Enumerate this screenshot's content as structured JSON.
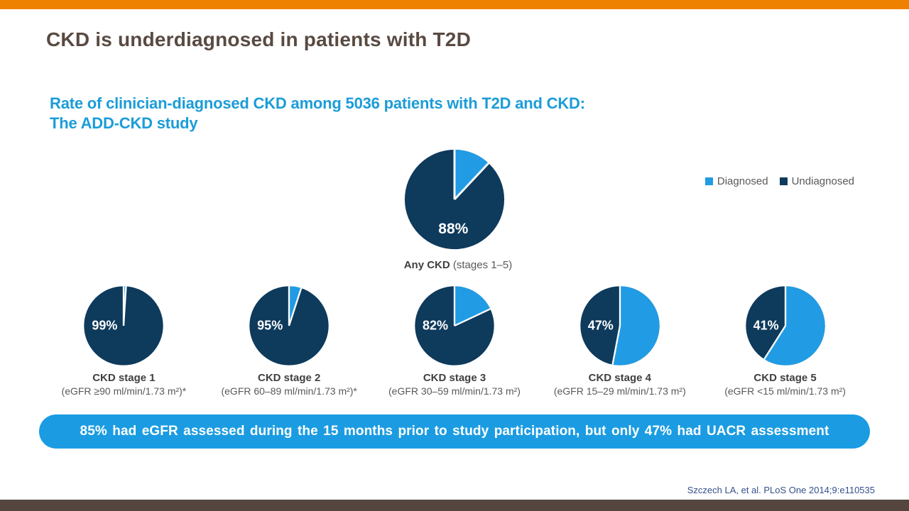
{
  "slide": {
    "title": "CKD is underdiagnosed in patients with T2D",
    "subtitle_line1": "Rate of clinician-diagnosed CKD among 5036 patients with T2D and CKD:",
    "subtitle_line2": "The ADD-CKD study",
    "banner_text": "85% had eGFR assessed during the 15 months prior to study participation, but only 47% had UACR assessment",
    "citation": "Szczech LA, et al. PLoS One 2014;9:e110535"
  },
  "colors": {
    "top_bar": "#ee8100",
    "bottom_bar": "#54463f",
    "title_text": "#594a42",
    "subtitle_text": "#1b9cd8",
    "banner_bg": "#1b9ce2",
    "diagnosed": "#219ce4",
    "undiagnosed": "#0e3a5c",
    "pie_value_text": "#ffffff",
    "citation_text": "#34508c"
  },
  "chart_data": {
    "type": "pie",
    "unit": "%",
    "legend": [
      "Diagnosed",
      "Undiagnosed"
    ],
    "legend_position": "top-right",
    "colors": {
      "diagnosed": "#219ce4",
      "undiagnosed": "#0e3a5c"
    },
    "pies": [
      {
        "title": "Any CKD",
        "subtitle": "(stages 1–5)",
        "diagnosed": 12,
        "undiagnosed": 88,
        "label": "88%"
      },
      {
        "title": "CKD stage 1",
        "subtitle": "(eGFR ≥90 ml/min/1.73  m²)*",
        "diagnosed": 1,
        "undiagnosed": 99,
        "label": "99%"
      },
      {
        "title": "CKD stage 2",
        "subtitle": "(eGFR 60–89 ml/min/1.73  m²)*",
        "diagnosed": 5,
        "undiagnosed": 95,
        "label": "95%"
      },
      {
        "title": "CKD stage 3",
        "subtitle": "(eGFR 30–59 ml/min/1.73  m²)",
        "diagnosed": 18,
        "undiagnosed": 82,
        "label": "82%"
      },
      {
        "title": "CKD stage 4",
        "subtitle": "(eGFR 15–29 ml/min/1.73  m²)",
        "diagnosed": 53,
        "undiagnosed": 47,
        "label": "47%"
      },
      {
        "title": "CKD stage 5",
        "subtitle": "(eGFR <15 ml/min/1.73  m²)",
        "diagnosed": 59,
        "undiagnosed": 41,
        "label": "41%"
      }
    ]
  }
}
